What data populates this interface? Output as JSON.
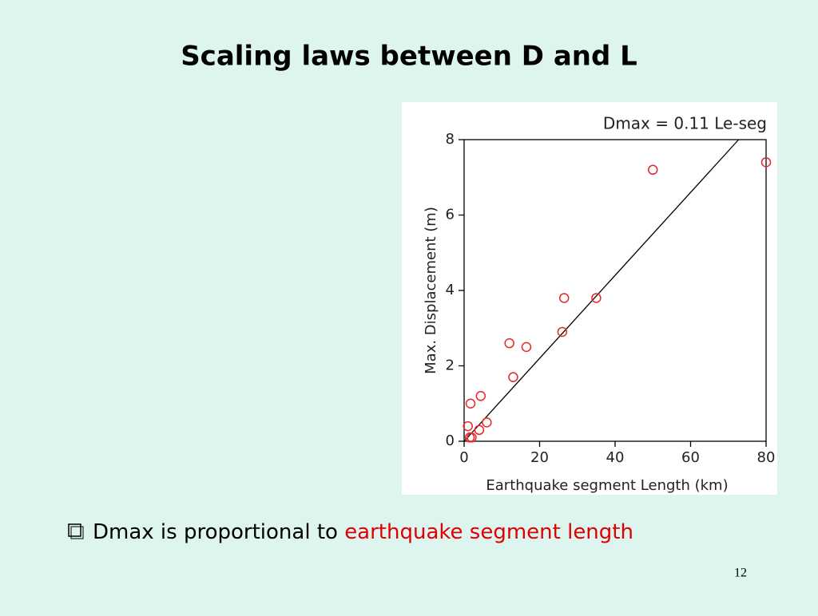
{
  "slide": {
    "title": "Scaling laws between D and L",
    "bullet": {
      "prefix": "Dmax is proportional to ",
      "highlight": "earthquake segment length"
    },
    "page_number": "12"
  },
  "chart_data": {
    "type": "scatter",
    "x_label": "Earthquake segment Length  (km)",
    "y_label": "Max. Displacement  (m)",
    "fit": {
      "label": "Dmax = 0.11 Le-seg",
      "slope": 0.11
    },
    "x": [
      1,
      1.5,
      2,
      1.7,
      4,
      4.4,
      6,
      12,
      13,
      16.5,
      26,
      26.5,
      35,
      50,
      80
    ],
    "values": [
      0.4,
      0.1,
      0.1,
      1.0,
      0.3,
      1.2,
      0.5,
      2.6,
      1.7,
      2.5,
      2.9,
      3.8,
      3.8,
      7.2,
      7.4
    ],
    "color": "#e8262a",
    "xlim": [
      0,
      80
    ],
    "ylim": [
      0,
      8
    ],
    "xticks": [
      0,
      20,
      40,
      60,
      80
    ],
    "yticks": [
      0,
      2,
      4,
      6,
      8
    ]
  }
}
